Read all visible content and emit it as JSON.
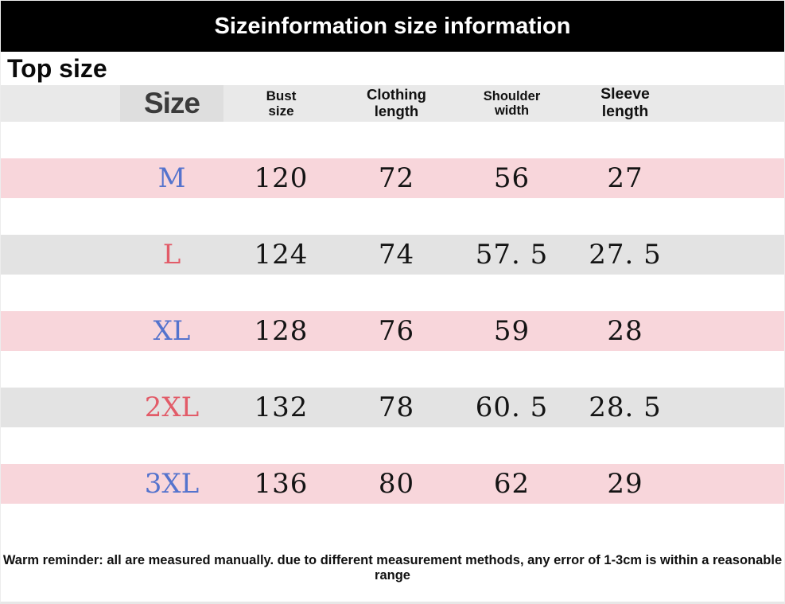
{
  "banner": {
    "title": "Sizeinformation size information"
  },
  "section": {
    "title": "Top size"
  },
  "table": {
    "headers": [
      {
        "id": "size",
        "label": "Size"
      },
      {
        "id": "bust",
        "label": "Bust\nsize"
      },
      {
        "id": "clothing",
        "label": "Clothing\nlength"
      },
      {
        "id": "shoulder",
        "label": "Shoulder\nwidth"
      },
      {
        "id": "sleeve",
        "label": "Sleeve\nlength"
      }
    ],
    "rows": [
      {
        "size": "M",
        "bust": "120",
        "clothing": "72",
        "shoulder": "56",
        "sleeve": "27",
        "row_bg": "#f8d6db",
        "size_color": "#5473cd"
      },
      {
        "size": "L",
        "bust": "124",
        "clothing": "74",
        "shoulder": "57. 5",
        "sleeve": "27. 5",
        "row_bg": "#e3e3e3",
        "size_color": "#e25b68"
      },
      {
        "size": "XL",
        "bust": "128",
        "clothing": "76",
        "shoulder": "59",
        "sleeve": "28",
        "row_bg": "#f8d6db",
        "size_color": "#5473cd"
      },
      {
        "size": "2XL",
        "bust": "132",
        "clothing": "78",
        "shoulder": "60. 5",
        "sleeve": "28. 5",
        "row_bg": "#e3e3e3",
        "size_color": "#e25b68"
      },
      {
        "size": "3XL",
        "bust": "136",
        "clothing": "80",
        "shoulder": "62",
        "sleeve": "29",
        "row_bg": "#f8d6db",
        "size_color": "#5473cd"
      }
    ]
  },
  "footer": {
    "reminder": "Warm reminder: all are measured manually. due to different measurement methods, any error of 1-3cm is within a reasonable range"
  },
  "colors": {
    "banner_bg": "#000000",
    "banner_text": "#ffffff",
    "header_row_bg": "#e9e9e9",
    "header_size_cell_bg": "#dedede",
    "pink_row": "#f8d6db",
    "gray_row": "#e3e3e3",
    "size_blue": "#5473cd",
    "size_red": "#e25b68",
    "number_text": "#141414"
  }
}
